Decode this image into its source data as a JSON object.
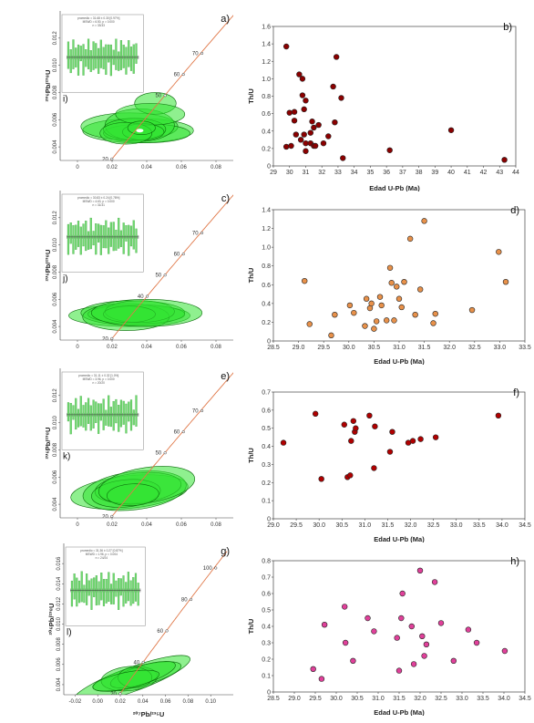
{
  "chart_data": [
    {
      "type": "scatter",
      "panel_label": "b)",
      "xlabel": "Edad U-Pb (Ma)",
      "ylabel": "Th/U",
      "xlim": [
        29,
        44
      ],
      "ylim": [
        0,
        1.6
      ],
      "xticks": [
        29,
        30,
        31,
        32,
        33,
        34,
        35,
        36,
        37,
        38,
        39,
        40,
        41,
        42,
        43,
        44
      ],
      "yticks": [
        0,
        0.2,
        0.4,
        0.6,
        0.8,
        1.0,
        1.2,
        1.4,
        1.6
      ],
      "xtick_labels": [
        "29",
        "30",
        "31",
        "32",
        "33",
        "34",
        "35",
        "36",
        "37",
        "38",
        "39",
        "40",
        "41",
        "42",
        "43",
        "44"
      ],
      "ytick_labels": [
        "0",
        "0.2",
        "0.4",
        "0.6",
        "0.8",
        "1.0",
        "1.2",
        "1.4",
        "1.6"
      ],
      "marker_color": "#8b0000",
      "points": [
        [
          29.8,
          1.37
        ],
        [
          29.8,
          0.22
        ],
        [
          30.0,
          0.61
        ],
        [
          30.1,
          0.23
        ],
        [
          30.3,
          0.62
        ],
        [
          30.3,
          0.52
        ],
        [
          30.4,
          0.36
        ],
        [
          30.6,
          1.05
        ],
        [
          30.7,
          0.3
        ],
        [
          30.8,
          1.0
        ],
        [
          30.8,
          0.81
        ],
        [
          30.9,
          0.65
        ],
        [
          30.9,
          0.36
        ],
        [
          31.0,
          0.75
        ],
        [
          31.0,
          0.26
        ],
        [
          31.0,
          0.17
        ],
        [
          31.3,
          0.38
        ],
        [
          31.3,
          0.26
        ],
        [
          31.4,
          0.51
        ],
        [
          31.5,
          0.23
        ],
        [
          31.5,
          0.44
        ],
        [
          31.6,
          0.23
        ],
        [
          31.8,
          0.47
        ],
        [
          32.1,
          0.26
        ],
        [
          32.4,
          0.34
        ],
        [
          32.7,
          0.91
        ],
        [
          32.8,
          0.5
        ],
        [
          32.9,
          1.25
        ],
        [
          33.2,
          0.78
        ],
        [
          33.3,
          0.09
        ],
        [
          36.2,
          0.18
        ],
        [
          40.0,
          0.41
        ],
        [
          43.3,
          0.07
        ]
      ]
    },
    {
      "type": "scatter",
      "panel_label": "d)",
      "xlabel": "Edad U-Pb (Ma)",
      "ylabel": "Th/U",
      "xlim": [
        28.5,
        33.5
      ],
      "ylim": [
        0,
        1.4
      ],
      "xticks": [
        28.5,
        29,
        29.5,
        30,
        30.5,
        31,
        31.5,
        32,
        32.5,
        33,
        33.5
      ],
      "yticks": [
        0,
        0.2,
        0.4,
        0.6,
        0.8,
        1.0,
        1.2,
        1.4
      ],
      "xtick_labels": [
        "28.5",
        "29.0",
        "29.5",
        "30.0",
        "30.5",
        "31.0",
        "31.5",
        "32.0",
        "32.5",
        "33.0",
        "33.5"
      ],
      "ytick_labels": [
        "0",
        "0.2",
        "0.4",
        "0.6",
        "0.8",
        "1.0",
        "1.2",
        "1.4"
      ],
      "marker_color": "#e8914a",
      "points": [
        [
          29.12,
          0.64
        ],
        [
          29.22,
          0.18
        ],
        [
          29.65,
          0.06
        ],
        [
          29.72,
          0.28
        ],
        [
          30.02,
          0.38
        ],
        [
          30.1,
          0.3
        ],
        [
          30.32,
          0.16
        ],
        [
          30.35,
          0.45
        ],
        [
          30.42,
          0.35
        ],
        [
          30.45,
          0.4
        ],
        [
          30.5,
          0.13
        ],
        [
          30.55,
          0.21
        ],
        [
          30.62,
          0.47
        ],
        [
          30.65,
          0.38
        ],
        [
          30.75,
          0.22
        ],
        [
          30.82,
          0.78
        ],
        [
          30.85,
          0.62
        ],
        [
          30.9,
          0.22
        ],
        [
          30.95,
          0.58
        ],
        [
          31.0,
          0.45
        ],
        [
          31.05,
          0.36
        ],
        [
          31.1,
          0.63
        ],
        [
          31.22,
          1.09
        ],
        [
          31.32,
          0.28
        ],
        [
          31.42,
          0.55
        ],
        [
          31.5,
          1.28
        ],
        [
          31.68,
          0.19
        ],
        [
          31.72,
          0.29
        ],
        [
          32.45,
          0.33
        ],
        [
          32.98,
          0.95
        ],
        [
          33.12,
          0.63
        ]
      ]
    },
    {
      "type": "scatter",
      "panel_label": "f)",
      "xlabel": "Edad U-Pb (Ma)",
      "ylabel": "Th/U",
      "xlim": [
        29.0,
        34.5
      ],
      "ylim": [
        0,
        0.7
      ],
      "xticks": [
        29.0,
        29.5,
        30.0,
        30.5,
        31.0,
        31.5,
        32.0,
        32.5,
        33.0,
        33.5,
        34.0,
        34.5
      ],
      "yticks": [
        0,
        0.1,
        0.2,
        0.3,
        0.4,
        0.5,
        0.6,
        0.7
      ],
      "xtick_labels": [
        "29.0",
        "29.5",
        "30.0",
        "30.5",
        "31.0",
        "31.5",
        "32.0",
        "32.5",
        "33.0",
        "33.5",
        "34.0",
        "34.5"
      ],
      "ytick_labels": [
        "0",
        "0.1",
        "0.2",
        "0.3",
        "0.4",
        "0.5",
        "0.6",
        "0.7"
      ],
      "marker_color": "#b00000",
      "points": [
        [
          29.22,
          0.42
        ],
        [
          29.92,
          0.58
        ],
        [
          30.05,
          0.22
        ],
        [
          30.55,
          0.52
        ],
        [
          30.62,
          0.23
        ],
        [
          30.68,
          0.24
        ],
        [
          30.7,
          0.43
        ],
        [
          30.75,
          0.54
        ],
        [
          30.78,
          0.48
        ],
        [
          30.8,
          0.5
        ],
        [
          31.1,
          0.57
        ],
        [
          31.2,
          0.28
        ],
        [
          31.22,
          0.51
        ],
        [
          31.55,
          0.37
        ],
        [
          31.6,
          0.48
        ],
        [
          31.95,
          0.42
        ],
        [
          32.05,
          0.43
        ],
        [
          32.22,
          0.44
        ],
        [
          32.55,
          0.45
        ],
        [
          33.92,
          0.57
        ]
      ]
    },
    {
      "type": "scatter",
      "panel_label": "h)",
      "xlabel": "Edad U-Pb (Ma)",
      "ylabel": "Th/U",
      "xlim": [
        28.5,
        34.5
      ],
      "ylim": [
        0,
        0.8
      ],
      "xticks": [
        28.5,
        29.0,
        29.5,
        30.0,
        30.5,
        31.0,
        31.5,
        32.0,
        32.5,
        33.0,
        33.5,
        34.0,
        34.5
      ],
      "yticks": [
        0,
        0.1,
        0.2,
        0.3,
        0.4,
        0.5,
        0.6,
        0.7,
        0.8
      ],
      "xtick_labels": [
        "28.5",
        "29.0",
        "29.5",
        "30.0",
        "30.5",
        "31.0",
        "31.5",
        "32.0",
        "32.5",
        "33.0",
        "33.5",
        "34.0",
        "34.5"
      ],
      "ytick_labels": [
        "0",
        "0.1",
        "0.2",
        "0.3",
        "0.4",
        "0.5",
        "0.6",
        "0.7",
        "0.8"
      ],
      "marker_color": "#e0409a",
      "points": [
        [
          29.45,
          0.14
        ],
        [
          29.65,
          0.08
        ],
        [
          29.72,
          0.41
        ],
        [
          30.2,
          0.52
        ],
        [
          30.22,
          0.3
        ],
        [
          30.4,
          0.19
        ],
        [
          30.75,
          0.45
        ],
        [
          30.9,
          0.37
        ],
        [
          31.45,
          0.33
        ],
        [
          31.5,
          0.13
        ],
        [
          31.55,
          0.45
        ],
        [
          31.58,
          0.6
        ],
        [
          31.8,
          0.4
        ],
        [
          31.85,
          0.17
        ],
        [
          32.0,
          0.74
        ],
        [
          32.05,
          0.34
        ],
        [
          32.1,
          0.22
        ],
        [
          32.15,
          0.29
        ],
        [
          32.35,
          0.67
        ],
        [
          32.5,
          0.42
        ],
        [
          32.8,
          0.19
        ],
        [
          33.15,
          0.38
        ],
        [
          33.35,
          0.3
        ],
        [
          34.02,
          0.25
        ]
      ]
    },
    {
      "type": "scatter",
      "panel_label": "a)",
      "inset_label": "i)",
      "xlabel": "",
      "ylabel_main": "²⁰⁶Pb/²³⁸U",
      "xlim": [
        -0.01,
        0.09
      ],
      "ylim": [
        0.003,
        0.014
      ],
      "xticks": [
        0,
        0.02,
        0.04,
        0.06,
        0.08
      ],
      "yticks": [
        0.004,
        0.006,
        0.008,
        0.01,
        0.012
      ],
      "xtick_labels": [
        "0",
        "0.02",
        "0.04",
        "0.06",
        "0.08"
      ],
      "ytick_labels": [
        "0.004",
        "0.006",
        "0.008",
        "0.010",
        "0.012"
      ],
      "concordia_ages": [
        [
          "20",
          0.0199,
          0.00311
        ],
        [
          "50",
          0.0506,
          0.00778
        ],
        [
          "60",
          0.0612,
          0.00933
        ],
        [
          "70",
          0.0719,
          0.01088
        ]
      ],
      "inset_text": [
        "promedio = 31.68 ± 0.30 [0.97%]",
        "MSWD = 6.50, p = 0.000",
        "n = 33/33"
      ],
      "ellipses": [
        [
          0.035,
          0.0052,
          0.032,
          0.0009,
          0
        ],
        [
          0.03,
          0.0055,
          0.028,
          0.001,
          0
        ],
        [
          0.04,
          0.005,
          0.025,
          0.0007,
          0
        ],
        [
          0.036,
          0.0056,
          0.02,
          0.0012,
          0
        ],
        [
          0.033,
          0.0053,
          0.018,
          0.0008,
          0
        ],
        [
          0.045,
          0.0072,
          0.012,
          0.0008,
          0
        ],
        [
          0.042,
          0.0064,
          0.02,
          0.0008,
          0
        ],
        [
          0.038,
          0.0051,
          0.012,
          0.0006,
          0
        ],
        [
          0.028,
          0.005,
          0.015,
          0.0008,
          0
        ],
        [
          0.037,
          0.0054,
          0.008,
          0.0005,
          0
        ]
      ],
      "white_marks": [
        [
          0.036,
          0.0052
        ]
      ]
    },
    {
      "type": "scatter",
      "panel_label": "c)",
      "inset_label": "j)",
      "xlabel": "",
      "ylabel_main": "²⁰⁶Pb/²³⁸U",
      "xlim": [
        -0.01,
        0.09
      ],
      "ylim": [
        0.003,
        0.014
      ],
      "xticks": [
        0,
        0.02,
        0.04,
        0.06,
        0.08
      ],
      "yticks": [
        0.004,
        0.006,
        0.008,
        0.01,
        0.012
      ],
      "xtick_labels": [
        "0",
        "0.02",
        "0.04",
        "0.06",
        "0.08"
      ],
      "ytick_labels": [
        "0.004",
        "0.006",
        "0.008",
        "0.010",
        "0.012"
      ],
      "concordia_ages": [
        [
          "20",
          0.0199,
          0.00311
        ],
        [
          "40",
          0.0403,
          0.00622
        ],
        [
          "50",
          0.0506,
          0.00778
        ],
        [
          "60",
          0.0612,
          0.00933
        ],
        [
          "70",
          0.0719,
          0.01088
        ]
      ],
      "inset_text": [
        "promedio = 30.83 ± 0.24 [0.78%]",
        "MSWD = 4.63, p = 0.000",
        "n = 31/31"
      ],
      "ellipses": [
        [
          0.03,
          0.0048,
          0.035,
          0.0008,
          0
        ],
        [
          0.032,
          0.005,
          0.03,
          0.0009,
          0
        ],
        [
          0.034,
          0.0049,
          0.028,
          0.0007,
          0
        ],
        [
          0.028,
          0.0047,
          0.025,
          0.001,
          0
        ],
        [
          0.036,
          0.0051,
          0.02,
          0.0008,
          0
        ],
        [
          0.03,
          0.0049,
          0.015,
          0.0006,
          0
        ],
        [
          0.04,
          0.005,
          0.032,
          0.001,
          0
        ]
      ],
      "white_marks": []
    },
    {
      "type": "scatter",
      "panel_label": "e)",
      "inset_label": "k)",
      "xlabel": "",
      "ylabel_main": "²⁰⁶Pb/²³⁸U",
      "xlim": [
        -0.01,
        0.09
      ],
      "ylim": [
        0.003,
        0.014
      ],
      "xticks": [
        0,
        0.02,
        0.04,
        0.06,
        0.08
      ],
      "yticks": [
        0.004,
        0.006,
        0.008,
        0.01,
        0.012
      ],
      "xtick_labels": [
        "0",
        "0.02",
        "0.04",
        "0.06",
        "0.08"
      ],
      "ytick_labels": [
        "0.004",
        "0.006",
        "0.008",
        "0.010",
        "0.012"
      ],
      "concordia_ages": [
        [
          "20",
          0.0199,
          0.00311
        ],
        [
          "50",
          0.0506,
          0.00778
        ],
        [
          "60",
          0.0612,
          0.00933
        ],
        [
          "70",
          0.0719,
          0.01088
        ]
      ],
      "inset_text": [
        "promedio = 31.11 ± 0.32 [1.0%]",
        "MSWD = 3.96, p = 0.000",
        "n = 20/20"
      ],
      "ellipses": [
        [
          0.03,
          0.0049,
          0.034,
          0.0012,
          0.1
        ],
        [
          0.033,
          0.005,
          0.03,
          0.0014,
          0.12
        ],
        [
          0.035,
          0.0052,
          0.025,
          0.0011,
          0.1
        ],
        [
          0.028,
          0.0048,
          0.02,
          0.001,
          0.1
        ],
        [
          0.04,
          0.0054,
          0.028,
          0.0013,
          0.15
        ],
        [
          0.032,
          0.0047,
          0.015,
          0.0008,
          0.05
        ]
      ],
      "white_marks": []
    },
    {
      "type": "scatter",
      "panel_label": "g)",
      "inset_label": "l)",
      "xlabel": "²⁰⁷Pb/²³⁵U",
      "ylabel_main": "²⁰⁶Pb/²³⁸U",
      "xlim": [
        -0.03,
        0.12
      ],
      "ylim": [
        0.003,
        0.018
      ],
      "xticks": [
        -0.02,
        0,
        0.02,
        0.04,
        0.06,
        0.08,
        0.1
      ],
      "yticks": [
        0.004,
        0.006,
        0.008,
        0.01,
        0.012,
        0.014,
        0.016
      ],
      "xtick_labels": [
        "-0.02",
        "0.00",
        "0.02",
        "0.04",
        "0.06",
        "0.08",
        "0.10"
      ],
      "ytick_labels": [
        "0.004",
        "0.006",
        "0.008",
        "0.010",
        "0.012",
        "0.014",
        "0.016"
      ],
      "concordia_ages": [
        [
          "20",
          0.0199,
          0.00311
        ],
        [
          "40",
          0.0403,
          0.00622
        ],
        [
          "60",
          0.0612,
          0.00933
        ],
        [
          "80",
          0.0826,
          0.01244
        ],
        [
          "100",
          0.1045,
          0.01556
        ]
      ],
      "inset_text": [
        "promedio = 31.36 ± 0.27 [0.87%]",
        "MSWD = 1.96, p = 0.004",
        "n = 24/24"
      ],
      "ellipses": [
        [
          0.03,
          0.0045,
          0.055,
          0.0012,
          0.35
        ],
        [
          0.035,
          0.0048,
          0.04,
          0.001,
          0.25
        ],
        [
          0.028,
          0.0046,
          0.025,
          0.0012,
          0.1
        ],
        [
          0.04,
          0.005,
          0.03,
          0.0009,
          0.3
        ],
        [
          0.033,
          0.0047,
          0.015,
          0.001,
          0
        ],
        [
          0.025,
          0.0044,
          0.03,
          0.0008,
          0.2
        ]
      ],
      "white_marks": []
    }
  ]
}
